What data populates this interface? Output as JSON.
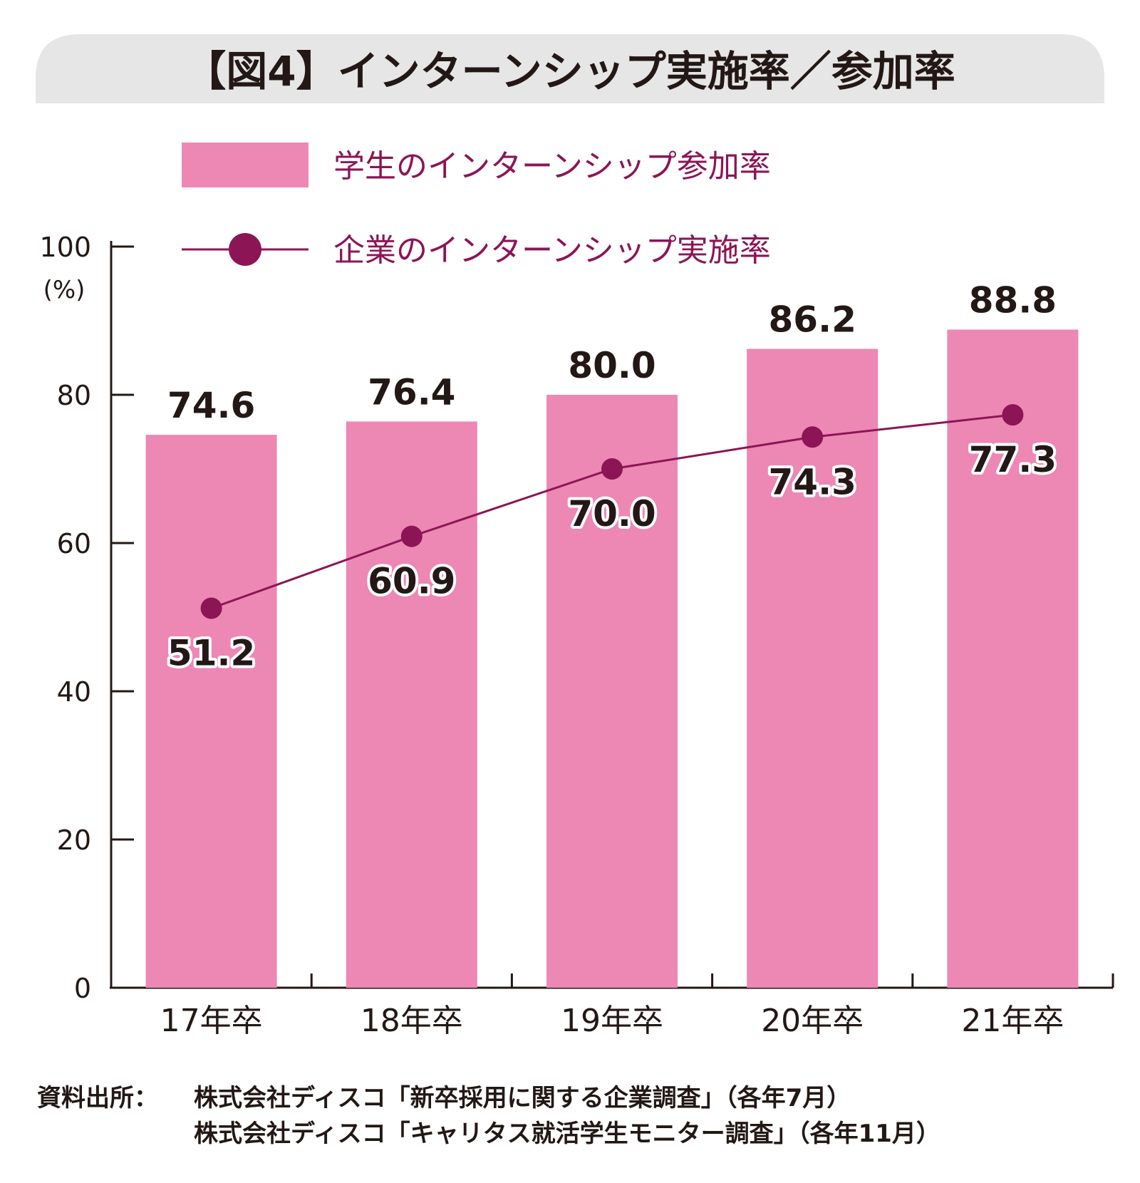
{
  "title": "【図4】インターンシップ実施率／参加率",
  "chart_data": {
    "type": "bar",
    "categories": [
      "17年卒",
      "18年卒",
      "19年卒",
      "20年卒",
      "21年卒"
    ],
    "series": [
      {
        "name": "学生のインターンシップ参加率",
        "kind": "bar",
        "color": "#ec88b3",
        "values": [
          74.6,
          76.4,
          80.0,
          86.2,
          88.8
        ]
      },
      {
        "name": "企業のインターンシップ実施率",
        "kind": "line",
        "color": "#8c1556",
        "values": [
          51.2,
          60.9,
          70.0,
          74.3,
          77.3
        ]
      }
    ],
    "ylim": [
      0,
      100
    ],
    "yticks": [
      0,
      20,
      40,
      60,
      80,
      100
    ],
    "yunit": "(%)",
    "legend_position": "top",
    "grid": false
  },
  "source": {
    "label": "資料出所：",
    "lines": [
      "株式会社ディスコ「新卒採用に関する企業調査」（各年7月）",
      "株式会社ディスコ「キャリタス就活学生モニター調査」（各年11月）"
    ]
  },
  "colors": {
    "header_bg": "#e6e6e6",
    "axis": "#231815",
    "text": "#231815"
  }
}
